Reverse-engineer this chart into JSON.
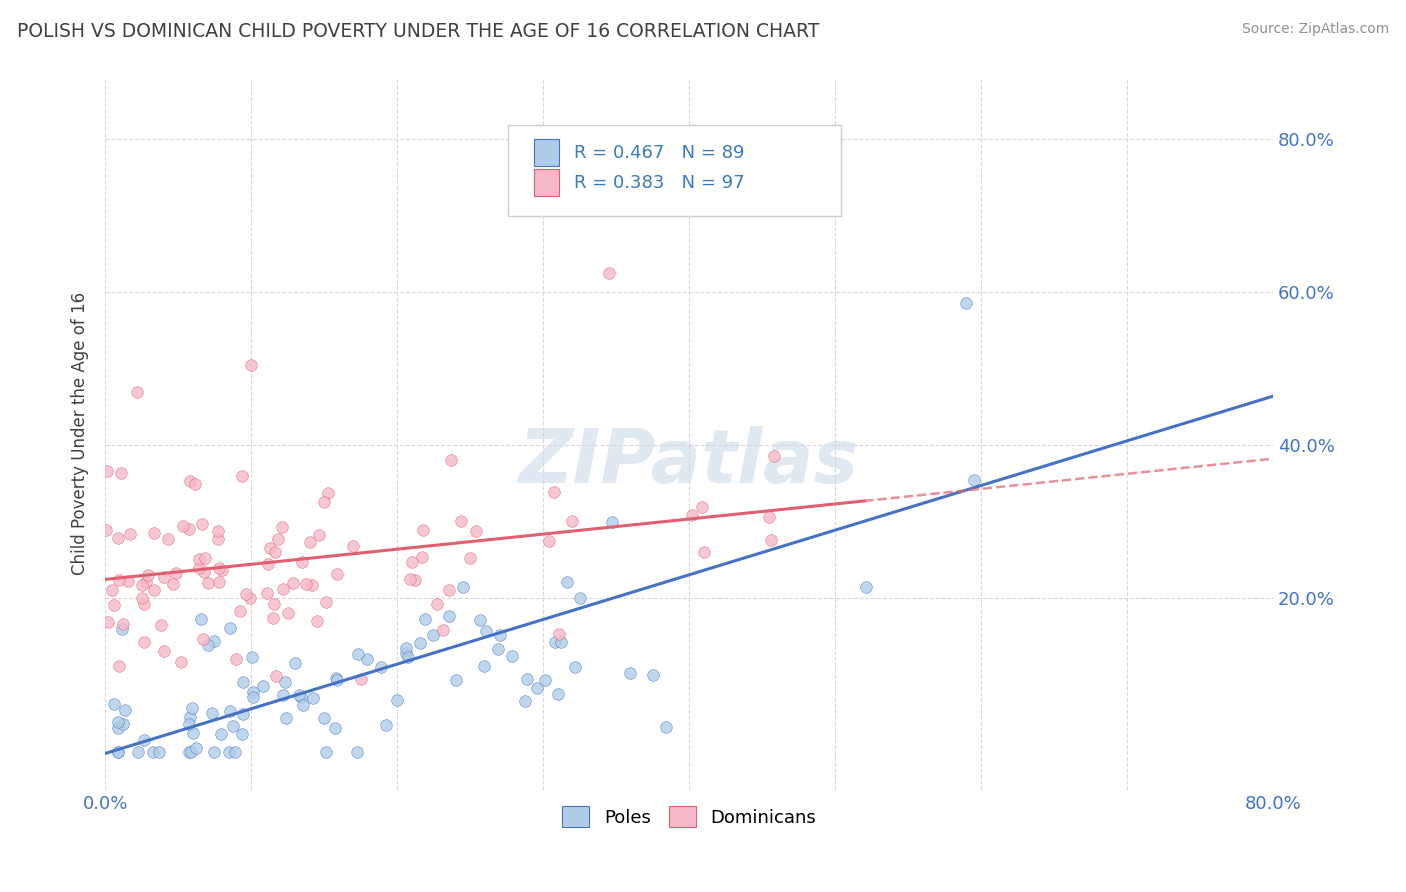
{
  "title": "POLISH VS DOMINICAN CHILD POVERTY UNDER THE AGE OF 16 CORRELATION CHART",
  "source": "Source: ZipAtlas.com",
  "ylabel": "Child Poverty Under the Age of 16",
  "ylabel_right_ticks": [
    "20.0%",
    "40.0%",
    "60.0%",
    "80.0%"
  ],
  "ylabel_right_values": [
    0.2,
    0.4,
    0.6,
    0.8
  ],
  "xlim": [
    0.0,
    0.8
  ],
  "ylim": [
    -0.05,
    0.88
  ],
  "poles_R": 0.467,
  "poles_N": 89,
  "dominicans_R": 0.383,
  "dominicans_N": 97,
  "poles_color": "#aecde8",
  "dominicans_color": "#f5b8c8",
  "poles_line_color": "#4472c4",
  "dominicans_line_color": "#e06070",
  "watermark": "ZIPatlas",
  "background_color": "#ffffff",
  "grid_color": "#d8d8d8",
  "title_color": "#404040",
  "source_color": "#909090",
  "legend_label_color": "#3a7abf",
  "seed": 7
}
